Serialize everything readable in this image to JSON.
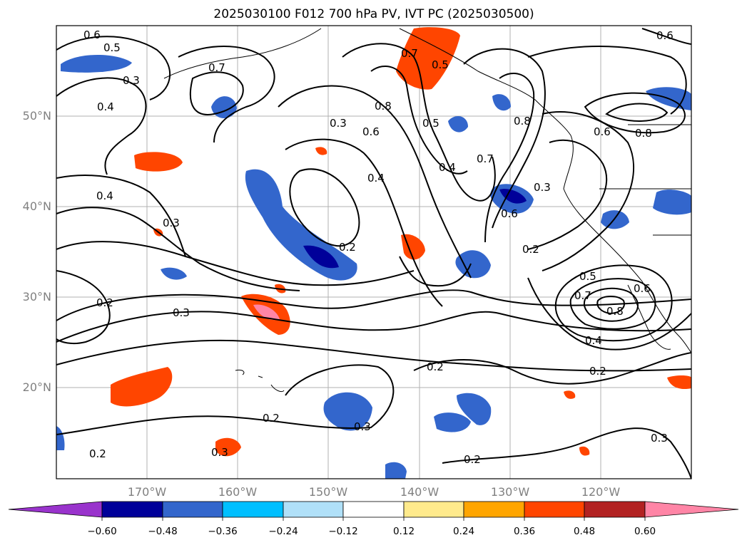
{
  "title": "2025030100 F012 700 hPa PV, IVT PC (2025030500)",
  "map": {
    "region": "North Pacific",
    "lon_range": [
      -180,
      -110
    ],
    "lat_range": [
      10,
      60
    ],
    "lat_ticks": [
      "50°N",
      "40°N",
      "30°N",
      "20°N"
    ],
    "lon_ticks": [
      "170°W",
      "160°W",
      "150°W",
      "140°W",
      "130°W",
      "120°W"
    ],
    "contour_labels": [
      "0.6",
      "0.5",
      "0.3",
      "0.4",
      "0.7",
      "0.8",
      "0.5",
      "0.6",
      "0.3",
      "0.4",
      "0.4",
      "0.7",
      "0.8",
      "0.6",
      "0.8",
      "0.3",
      "0.4",
      "0.3",
      "0.6",
      "0.2",
      "0.2",
      "0.7",
      "0.5",
      "0.6",
      "0.8",
      "0.4",
      "0.2",
      "0.2",
      "0.2",
      "0.3",
      "0.3",
      "0.2",
      "0.3",
      "0.2",
      "0.2",
      "0.5",
      "0.7",
      "0.6",
      "0.3"
    ]
  },
  "colorbar": {
    "colors": [
      "#9933cc",
      "#000099",
      "#3366cc",
      "#00bfff",
      "#b0e0f8",
      "#ffffff",
      "#ffea8c",
      "#ffa500",
      "#ff4500",
      "#b22222",
      "#ff85a6"
    ],
    "labels": [
      "−0.60",
      "−0.48",
      "−0.36",
      "−0.24",
      "−0.12",
      "0.12",
      "0.24",
      "0.36",
      "0.48",
      "0.60"
    ],
    "extend": "both"
  }
}
